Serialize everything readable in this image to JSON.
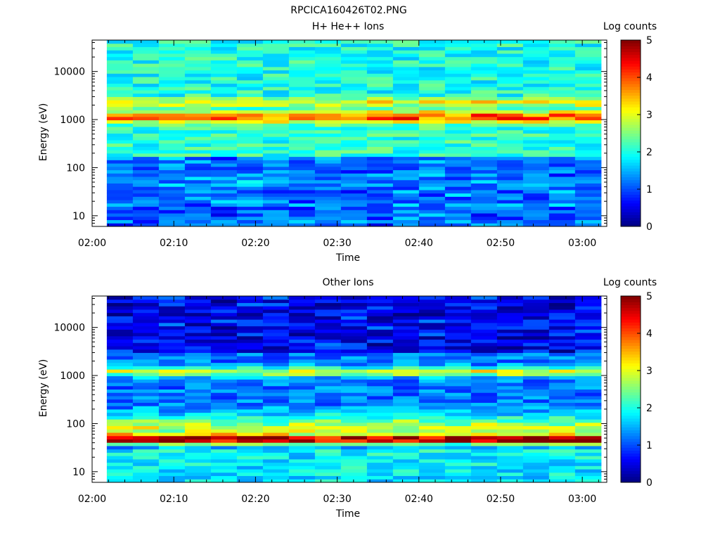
{
  "figure_title": "RPCICA160426T02.PNG",
  "time_ticks": [
    "02:00",
    "02:10",
    "02:20",
    "02:30",
    "02:40",
    "02:50",
    "03:00"
  ],
  "energy_ticks": [
    "10",
    "100",
    "1000",
    "10000"
  ],
  "colorbar": {
    "label": "Log counts",
    "ticks": [
      "0",
      "1",
      "2",
      "3",
      "4",
      "5"
    ],
    "range": [
      0,
      5
    ],
    "colormap": "jet"
  },
  "chart_data": [
    {
      "type": "heatmap",
      "title": "H+ He++ Ions",
      "xlabel": "Time",
      "ylabel": "Energy (eV)",
      "yscale": "log",
      "ylim": [
        6,
        45000
      ],
      "x_range_minutes": [
        0,
        63
      ],
      "data_x_start_minutes": 1.8,
      "data_x_end_minutes": 62.3,
      "colorbar_label": "Log counts",
      "bands_log_energy": [
        {
          "center": 3.06,
          "peak": 4.1,
          "width": 0.085,
          "desc": "main proton peak ~1150 eV"
        },
        {
          "center": 3.36,
          "peak": 3.1,
          "width": 0.06,
          "desc": "alpha band ~2300 eV"
        },
        {
          "center": 1.68,
          "peak": 2.3,
          "width": 0.05,
          "desc": "~48 eV band"
        }
      ],
      "background_log_counts": 2.0
    },
    {
      "type": "heatmap",
      "title": "Other Ions",
      "xlabel": "Time",
      "ylabel": "Energy (eV)",
      "yscale": "log",
      "ylim": [
        6,
        45000
      ],
      "x_range_minutes": [
        0,
        63
      ],
      "data_x_start_minutes": 1.8,
      "data_x_end_minutes": 62.3,
      "colorbar_label": "Log counts",
      "bands_log_energy": [
        {
          "center": 1.67,
          "peak": 4.4,
          "width": 0.06,
          "desc": "strong ~47 eV band"
        },
        {
          "center": 3.08,
          "peak": 2.9,
          "width": 0.07,
          "desc": "~1200 eV band"
        },
        {
          "center": 1.9,
          "peak": 2.8,
          "width": 0.2,
          "desc": "~80 eV broad"
        }
      ],
      "background_log_counts": 1.2
    }
  ]
}
